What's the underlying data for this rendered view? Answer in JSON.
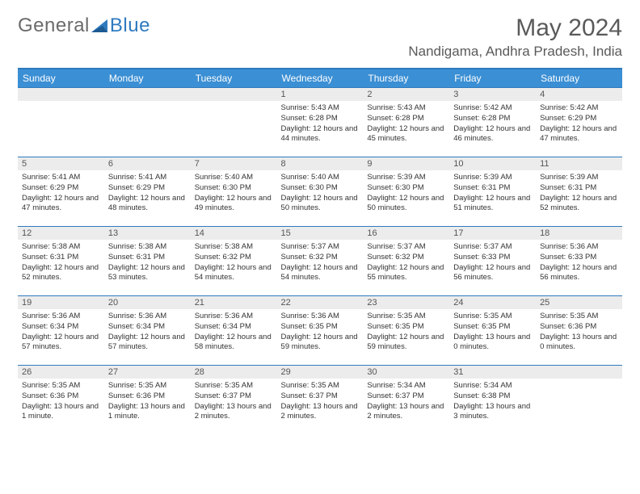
{
  "logo": {
    "text1": "General",
    "text2": "Blue"
  },
  "title": "May 2024",
  "location": "Nandigama, Andhra Pradesh, India",
  "colors": {
    "header_bg": "#3b8fd4",
    "accent_line": "#2f7abf",
    "daynum_bg": "#ececec",
    "text": "#333333",
    "title_text": "#5a5a5a"
  },
  "weekdays": [
    "Sunday",
    "Monday",
    "Tuesday",
    "Wednesday",
    "Thursday",
    "Friday",
    "Saturday"
  ],
  "first_weekday_index": 3,
  "days": [
    {
      "n": 1,
      "sunrise": "5:43 AM",
      "sunset": "6:28 PM",
      "daylight": "12 hours and 44 minutes."
    },
    {
      "n": 2,
      "sunrise": "5:43 AM",
      "sunset": "6:28 PM",
      "daylight": "12 hours and 45 minutes."
    },
    {
      "n": 3,
      "sunrise": "5:42 AM",
      "sunset": "6:28 PM",
      "daylight": "12 hours and 46 minutes."
    },
    {
      "n": 4,
      "sunrise": "5:42 AM",
      "sunset": "6:29 PM",
      "daylight": "12 hours and 47 minutes."
    },
    {
      "n": 5,
      "sunrise": "5:41 AM",
      "sunset": "6:29 PM",
      "daylight": "12 hours and 47 minutes."
    },
    {
      "n": 6,
      "sunrise": "5:41 AM",
      "sunset": "6:29 PM",
      "daylight": "12 hours and 48 minutes."
    },
    {
      "n": 7,
      "sunrise": "5:40 AM",
      "sunset": "6:30 PM",
      "daylight": "12 hours and 49 minutes."
    },
    {
      "n": 8,
      "sunrise": "5:40 AM",
      "sunset": "6:30 PM",
      "daylight": "12 hours and 50 minutes."
    },
    {
      "n": 9,
      "sunrise": "5:39 AM",
      "sunset": "6:30 PM",
      "daylight": "12 hours and 50 minutes."
    },
    {
      "n": 10,
      "sunrise": "5:39 AM",
      "sunset": "6:31 PM",
      "daylight": "12 hours and 51 minutes."
    },
    {
      "n": 11,
      "sunrise": "5:39 AM",
      "sunset": "6:31 PM",
      "daylight": "12 hours and 52 minutes."
    },
    {
      "n": 12,
      "sunrise": "5:38 AM",
      "sunset": "6:31 PM",
      "daylight": "12 hours and 52 minutes."
    },
    {
      "n": 13,
      "sunrise": "5:38 AM",
      "sunset": "6:31 PM",
      "daylight": "12 hours and 53 minutes."
    },
    {
      "n": 14,
      "sunrise": "5:38 AM",
      "sunset": "6:32 PM",
      "daylight": "12 hours and 54 minutes."
    },
    {
      "n": 15,
      "sunrise": "5:37 AM",
      "sunset": "6:32 PM",
      "daylight": "12 hours and 54 minutes."
    },
    {
      "n": 16,
      "sunrise": "5:37 AM",
      "sunset": "6:32 PM",
      "daylight": "12 hours and 55 minutes."
    },
    {
      "n": 17,
      "sunrise": "5:37 AM",
      "sunset": "6:33 PM",
      "daylight": "12 hours and 56 minutes."
    },
    {
      "n": 18,
      "sunrise": "5:36 AM",
      "sunset": "6:33 PM",
      "daylight": "12 hours and 56 minutes."
    },
    {
      "n": 19,
      "sunrise": "5:36 AM",
      "sunset": "6:34 PM",
      "daylight": "12 hours and 57 minutes."
    },
    {
      "n": 20,
      "sunrise": "5:36 AM",
      "sunset": "6:34 PM",
      "daylight": "12 hours and 57 minutes."
    },
    {
      "n": 21,
      "sunrise": "5:36 AM",
      "sunset": "6:34 PM",
      "daylight": "12 hours and 58 minutes."
    },
    {
      "n": 22,
      "sunrise": "5:36 AM",
      "sunset": "6:35 PM",
      "daylight": "12 hours and 59 minutes."
    },
    {
      "n": 23,
      "sunrise": "5:35 AM",
      "sunset": "6:35 PM",
      "daylight": "12 hours and 59 minutes."
    },
    {
      "n": 24,
      "sunrise": "5:35 AM",
      "sunset": "6:35 PM",
      "daylight": "13 hours and 0 minutes."
    },
    {
      "n": 25,
      "sunrise": "5:35 AM",
      "sunset": "6:36 PM",
      "daylight": "13 hours and 0 minutes."
    },
    {
      "n": 26,
      "sunrise": "5:35 AM",
      "sunset": "6:36 PM",
      "daylight": "13 hours and 1 minute."
    },
    {
      "n": 27,
      "sunrise": "5:35 AM",
      "sunset": "6:36 PM",
      "daylight": "13 hours and 1 minute."
    },
    {
      "n": 28,
      "sunrise": "5:35 AM",
      "sunset": "6:37 PM",
      "daylight": "13 hours and 2 minutes."
    },
    {
      "n": 29,
      "sunrise": "5:35 AM",
      "sunset": "6:37 PM",
      "daylight": "13 hours and 2 minutes."
    },
    {
      "n": 30,
      "sunrise": "5:34 AM",
      "sunset": "6:37 PM",
      "daylight": "13 hours and 2 minutes."
    },
    {
      "n": 31,
      "sunrise": "5:34 AM",
      "sunset": "6:38 PM",
      "daylight": "13 hours and 3 minutes."
    }
  ],
  "labels": {
    "sunrise": "Sunrise:",
    "sunset": "Sunset:",
    "daylight": "Daylight:"
  }
}
